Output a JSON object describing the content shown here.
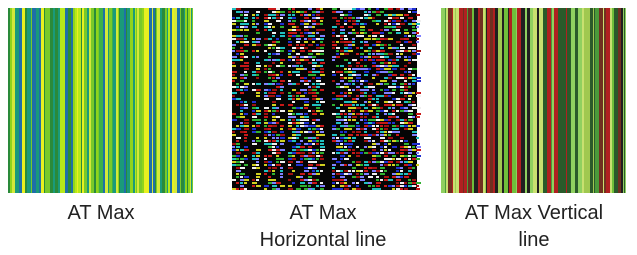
{
  "panels": [
    {
      "caption": [
        "AT Max"
      ]
    },
    {
      "caption": [
        "AT Max",
        "Horizontal line"
      ]
    },
    {
      "caption": [
        "AT Max Vertical",
        "line"
      ]
    }
  ]
}
